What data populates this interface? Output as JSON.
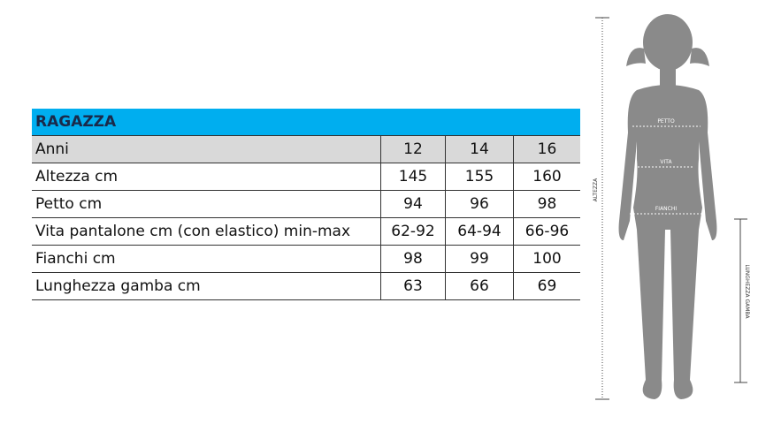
{
  "table": {
    "title": "RAGAZZA",
    "header": {
      "label": "Anni",
      "values": [
        "12",
        "14",
        "16"
      ]
    },
    "rows": [
      {
        "label": "Altezza cm",
        "values": [
          "145",
          "155",
          "160"
        ]
      },
      {
        "label": "Petto cm",
        "values": [
          "94",
          "96",
          "98"
        ]
      },
      {
        "label": "Vita pantalone cm (con elastico) min-max",
        "values": [
          "62-92",
          "64-94",
          "66-96"
        ]
      },
      {
        "label": "Fianchi cm",
        "values": [
          "98",
          "99",
          "100"
        ]
      },
      {
        "label": "Lunghezza gamba cm",
        "values": [
          "63",
          "66",
          "69"
        ]
      }
    ]
  },
  "figure": {
    "petto": "PETTO",
    "vita": "VITA",
    "fianchi": "FIANCHI",
    "altezza": "ALTEZZA",
    "gamba": "LUNGHEZZA GAMBA",
    "silhouette_color": "#8a8a8a"
  },
  "colors": {
    "title_bg": "#00aeef",
    "header_bg": "#d9d9d9"
  }
}
